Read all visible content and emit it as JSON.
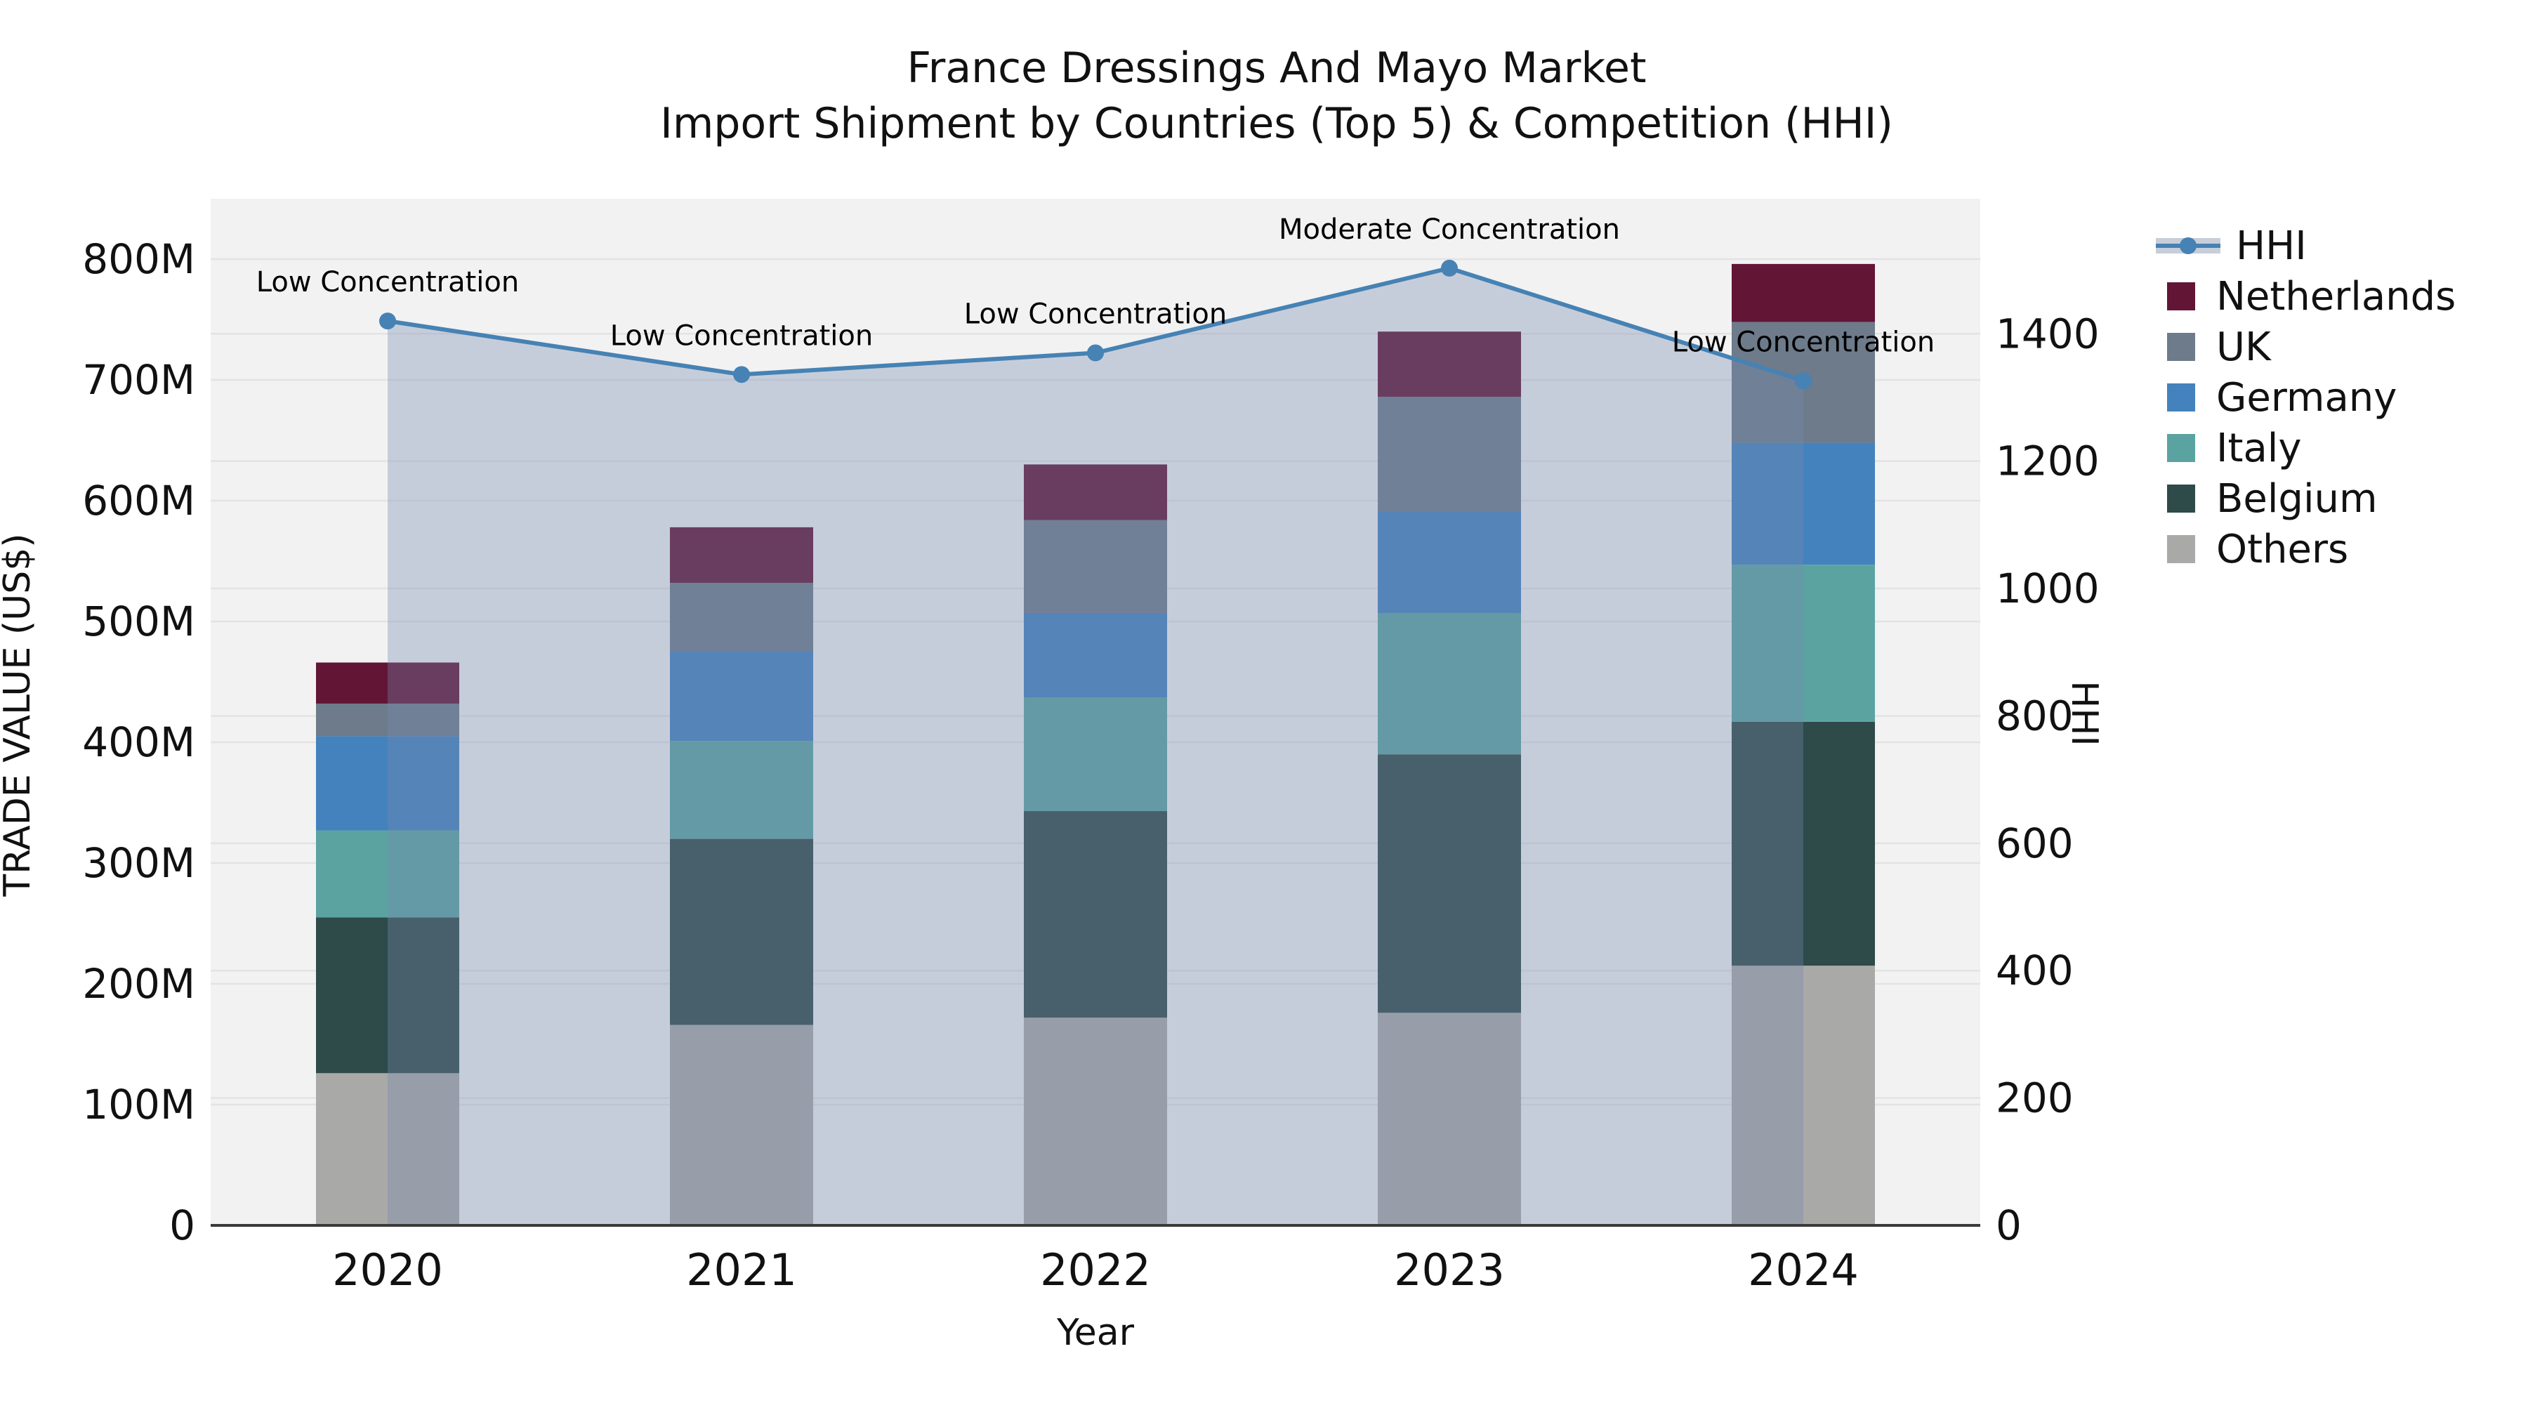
{
  "title": {
    "line1": "France Dressings And Mayo Market",
    "line2": "Import Shipment by Countries (Top 5) & Competition (HHI)"
  },
  "axes": {
    "x": {
      "label": "Year",
      "categories": [
        "2020",
        "2021",
        "2022",
        "2023",
        "2024"
      ]
    },
    "left": {
      "label": "TRADE VALUE (US$)",
      "tick_labels": [
        "0",
        "100M",
        "200M",
        "300M",
        "400M",
        "500M",
        "600M",
        "700M",
        "800M"
      ],
      "tick_values": [
        0,
        100,
        200,
        300,
        400,
        500,
        600,
        700,
        800
      ],
      "max": 850
    },
    "right": {
      "label": "HHI",
      "tick_labels": [
        "0",
        "200",
        "400",
        "600",
        "800",
        "1000",
        "1200",
        "1400"
      ],
      "tick_values": [
        0,
        200,
        400,
        600,
        800,
        1000,
        1200,
        1400
      ],
      "max": 1612
    }
  },
  "chart_data": {
    "type": "combo-stacked-bar-with-line-area",
    "x_label": "Year",
    "ylabel_left": "TRADE VALUE (US$)",
    "ylabel_right": "HHI",
    "categories": [
      "2020",
      "2021",
      "2022",
      "2023",
      "2024"
    ],
    "units_left": "US$ millions",
    "grid": true,
    "plot_bg": "#f2f2f2",
    "grid_color": "#e3e3e3",
    "axisline_color": "#3a3a3a",
    "ylim_left": [
      0,
      850
    ],
    "ylim_right": [
      0,
      1612
    ],
    "bar_series_bottom_to_top": [
      {
        "name": "Others",
        "color": "#a9aaa8",
        "values": [
          126,
          166,
          172,
          176,
          215
        ]
      },
      {
        "name": "Belgium",
        "color": "#2e4a49",
        "values": [
          129,
          154,
          171,
          214,
          202
        ]
      },
      {
        "name": "Italy",
        "color": "#5ba3a0",
        "values": [
          72,
          81,
          94,
          117,
          130
        ]
      },
      {
        "name": "Germany",
        "color": "#4482bd",
        "values": [
          78,
          74,
          70,
          84,
          101
        ]
      },
      {
        "name": "UK",
        "color": "#6d7b8b",
        "values": [
          27,
          57,
          77,
          95,
          100
        ]
      },
      {
        "name": "Netherlands",
        "color": "#631536",
        "values": [
          34,
          46,
          46,
          54,
          48
        ]
      }
    ],
    "bar_totals": [
      466,
      578,
      630,
      740,
      796
    ],
    "line_series": {
      "name": "HHI",
      "axis": "right",
      "color": "#4682b4",
      "area_fill": "rgba(118,138,174,0.35)",
      "marker": "circle",
      "values": [
        1420,
        1336,
        1370,
        1503,
        1326
      ]
    },
    "annotations": [
      {
        "x": "2020",
        "text": "Low Concentration"
      },
      {
        "x": "2021",
        "text": "Low Concentration"
      },
      {
        "x": "2022",
        "text": "Low Concentration"
      },
      {
        "x": "2023",
        "text": "Moderate Concentration"
      },
      {
        "x": "2024",
        "text": "Low Concentration"
      }
    ],
    "legend_position": "right"
  },
  "legend": {
    "items": [
      {
        "label": "HHI",
        "type": "line",
        "color": "#4682b4",
        "band": "#c7ceda"
      },
      {
        "label": "Netherlands",
        "type": "swatch",
        "color": "#631536"
      },
      {
        "label": "UK",
        "type": "swatch",
        "color": "#6d7b8b"
      },
      {
        "label": "Germany",
        "type": "swatch",
        "color": "#4482bd"
      },
      {
        "label": "Italy",
        "type": "swatch",
        "color": "#5ba3a0"
      },
      {
        "label": "Belgium",
        "type": "swatch",
        "color": "#2e4a49"
      },
      {
        "label": "Others",
        "type": "swatch",
        "color": "#a9aaa8"
      }
    ]
  }
}
